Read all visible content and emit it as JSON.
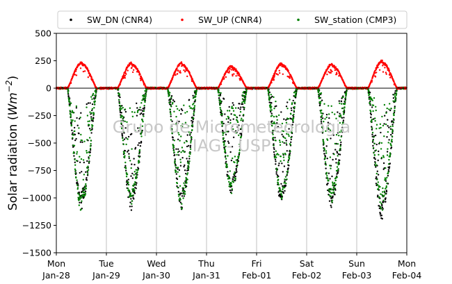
{
  "chart_data": {
    "type": "scatter",
    "title": "",
    "xlabel": "",
    "ylabel": "Solar radiation (Wm−2)",
    "ylabel_main": "Solar radiation (",
    "ylabel_unit": "Wm",
    "ylabel_exp": "−2",
    "ylabel_close": ")",
    "ylim": [
      -1500,
      500
    ],
    "yticks": [
      -1500,
      -1250,
      -1000,
      -750,
      -500,
      -250,
      0,
      250,
      500
    ],
    "xlim": [
      "2019-01-28",
      "2019-02-04"
    ],
    "xticks": [
      {
        "day": "Mon",
        "date": "Jan-28"
      },
      {
        "day": "Tue",
        "date": "Jan-29"
      },
      {
        "day": "Wed",
        "date": "Jan-30"
      },
      {
        "day": "Thu",
        "date": "Jan-31"
      },
      {
        "day": "Fri",
        "date": "Feb-01"
      },
      {
        "day": "Sat",
        "date": "Feb-02"
      },
      {
        "day": "Sun",
        "date": "Feb-03"
      },
      {
        "day": "Mon",
        "date": "Feb-04"
      }
    ],
    "grid": "vertical",
    "legend_position": "top",
    "watermark": [
      "Grupo de Micrometeorologia",
      "IAG - USP"
    ],
    "series": [
      {
        "name": "SW_DN (CNR4)",
        "color": "#000000",
        "marker": "dot",
        "daily_peak": [
          -1100,
          -1100,
          -1090,
          -960,
          -1060,
          -1090,
          -1180
        ],
        "description_note": ""
      },
      {
        "name": "SW_UP (CNR4)",
        "color": "#ff0000",
        "marker": "dot",
        "daily_peak": [
          240,
          235,
          235,
          205,
          230,
          225,
          255
        ]
      },
      {
        "name": "SW_station (CMP3)",
        "color": "#008000",
        "marker": "dot",
        "daily_peak": [
          -1120,
          -1060,
          -1100,
          -960,
          -1040,
          -1030,
          -1100
        ]
      }
    ]
  }
}
